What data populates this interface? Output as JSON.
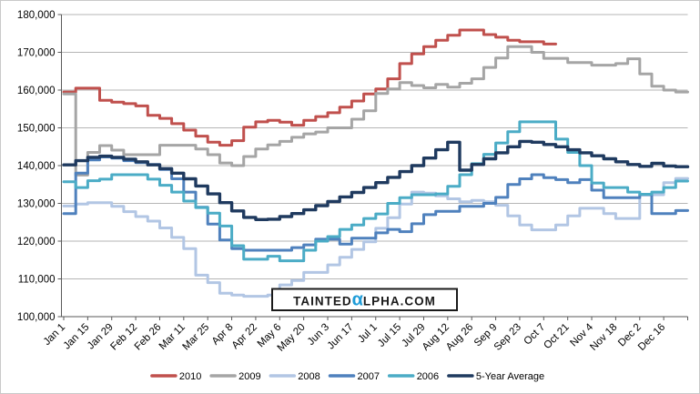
{
  "chart_data": {
    "type": "line",
    "title": "",
    "xlabel": "",
    "ylabel": "",
    "ylim": [
      100000,
      180000
    ],
    "y_tick_step": 10000,
    "y_tick_labels": [
      "100,000",
      "110,000",
      "120,000",
      "130,000",
      "140,000",
      "150,000",
      "160,000",
      "170,000",
      "180,000"
    ],
    "x_tick_labels": [
      "Jan 1",
      "Jan 15",
      "Jan 29",
      "Feb 12",
      "Feb 26",
      "Mar 11",
      "Mar 25",
      "Apr 8",
      "Apr 22",
      "May 6",
      "May 20",
      "Jun 3",
      "Jun 17",
      "Jul 1",
      "Jul 15",
      "Jul 29",
      "Aug 12",
      "Aug 26",
      "Sep 9",
      "Sep 23",
      "Oct 7",
      "Oct 21",
      "Nov 4",
      "Nov 18",
      "Dec 2",
      "Dec 16"
    ],
    "x_unit": "week",
    "weeks_per_tick": 2,
    "total_weeks": 52,
    "grid": "horizontal",
    "gridline_color": "#b5b5b5",
    "axis_color": "#595959",
    "legend_position": "bottom",
    "series": [
      {
        "name": "2010",
        "color": "#C0504D",
        "width": 3,
        "values": [
          159500,
          160500,
          160500,
          157300,
          156800,
          156400,
          155800,
          153300,
          152500,
          151100,
          149400,
          147800,
          146200,
          145400,
          146600,
          150200,
          151600,
          152000,
          151500,
          150700,
          152000,
          153000,
          154000,
          155500,
          157100,
          159000,
          160300,
          163000,
          167000,
          169600,
          171500,
          173200,
          174500,
          175900,
          175900,
          174700,
          174000,
          173200,
          172800,
          172800,
          172200
        ]
      },
      {
        "name": "2009",
        "color": "#A5A5A5",
        "width": 3,
        "values": [
          159000,
          137500,
          143500,
          145300,
          144100,
          142900,
          142900,
          142900,
          145400,
          145400,
          145400,
          144400,
          142900,
          140700,
          140000,
          142400,
          144400,
          145500,
          146400,
          147500,
          148400,
          148900,
          150000,
          150000,
          152300,
          154500,
          159100,
          160300,
          162000,
          161200,
          160600,
          161500,
          160800,
          161800,
          163000,
          166000,
          168500,
          171500,
          171500,
          170000,
          168400,
          168400,
          167300,
          167300,
          166600,
          166600,
          167000,
          168300,
          164300,
          161000,
          160000,
          159500
        ]
      },
      {
        "name": "2008",
        "color": "#B2C6E4",
        "width": 3,
        "values": [
          129300,
          129800,
          130200,
          130200,
          129200,
          127800,
          126500,
          125300,
          123500,
          121000,
          118000,
          111000,
          109000,
          106200,
          105700,
          105400,
          105400,
          105700,
          108400,
          109600,
          111700,
          111700,
          113700,
          115700,
          117800,
          119800,
          123400,
          126200,
          129800,
          133000,
          132700,
          132000,
          131200,
          130400,
          130800,
          130400,
          129500,
          126700,
          124300,
          123000,
          123000,
          124300,
          126700,
          128700,
          128700,
          127300,
          126000,
          126000,
          132300,
          132300,
          135500,
          136600
        ]
      },
      {
        "name": "2007",
        "color": "#4F81BD",
        "width": 3,
        "values": [
          127300,
          138000,
          141500,
          142300,
          142000,
          141300,
          140800,
          140300,
          139000,
          136500,
          133000,
          129000,
          124500,
          120300,
          118000,
          117600,
          117600,
          117600,
          117600,
          118300,
          119000,
          120500,
          120500,
          119200,
          120800,
          120800,
          122200,
          123100,
          122500,
          124600,
          127000,
          127900,
          127900,
          129200,
          129200,
          130000,
          131600,
          135000,
          136500,
          137600,
          136800,
          136300,
          135500,
          136300,
          133500,
          131500,
          131500,
          131500,
          132300,
          127300,
          127300,
          128100
        ]
      },
      {
        "name": "2006",
        "color": "#4BACC6",
        "width": 3,
        "values": [
          135700,
          134200,
          136000,
          136400,
          137600,
          137600,
          137600,
          136400,
          134800,
          133000,
          130600,
          128900,
          127400,
          124000,
          118800,
          115200,
          115200,
          116000,
          114800,
          114800,
          117600,
          120000,
          121200,
          123100,
          124300,
          126000,
          127200,
          130000,
          131500,
          132300,
          132300,
          132500,
          134500,
          137600,
          140500,
          143000,
          146000,
          149000,
          151600,
          151600,
          151600,
          147000,
          143500,
          140000,
          135400,
          134200,
          134200,
          133000,
          132400,
          133000,
          134200,
          135900
        ]
      },
      {
        "name": "5-Year Average",
        "color": "#1F3A5F",
        "width": 3.4,
        "values": [
          140200,
          141300,
          142200,
          142500,
          142200,
          141700,
          141000,
          140200,
          139200,
          138000,
          136500,
          134600,
          132500,
          130200,
          128000,
          126300,
          125700,
          125800,
          126500,
          127300,
          128300,
          129400,
          130500,
          131700,
          132900,
          134200,
          135500,
          136900,
          138400,
          140000,
          142000,
          144200,
          146200,
          138800,
          140300,
          141800,
          143400,
          145000,
          146400,
          146200,
          145600,
          145000,
          144200,
          143400,
          142600,
          141800,
          141000,
          140300,
          139800,
          140600,
          139900,
          139700
        ]
      }
    ]
  },
  "watermark": {
    "text_prefix": "TAINTED",
    "alpha_char": "α",
    "text_suffix": "LPHA.COM",
    "alpha_color": "#1E9CD8",
    "text_color": "#1a1a1a",
    "border_color": "#1a1a1a"
  }
}
